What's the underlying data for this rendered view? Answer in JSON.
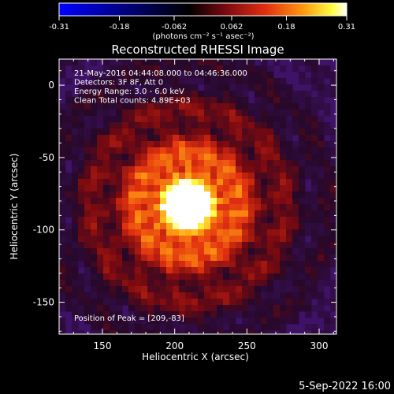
{
  "chart_data": {
    "type": "heatmap",
    "title": "Reconstructed RHESSI Image",
    "xlabel": "Heliocentric X (arcsec)",
    "ylabel": "Heliocentric Y (arcsec)",
    "xlim": [
      120,
      312
    ],
    "ylim": [
      -172,
      18
    ],
    "x_ticks": [
      150,
      200,
      250,
      300
    ],
    "y_ticks": [
      0,
      -50,
      -100,
      -150
    ],
    "colorbar": {
      "range": [
        -0.31,
        0.31
      ],
      "tick_values": [
        -0.31,
        -0.18,
        -0.062,
        0.062,
        0.18,
        0.31
      ],
      "tick_labels": [
        "-0.31",
        "-0.18",
        "-0.062",
        "0.062",
        "0.18",
        "0.31"
      ],
      "units": "(photons cm⁻² s⁻¹ asec⁻²)",
      "colors": [
        "#0000ff",
        "#000000",
        "#7a0a10",
        "#e23010",
        "#ff9a10",
        "#ffff40",
        "#ffffff"
      ]
    },
    "annotations": [
      "21-May-2016 04:44:08.000 to 04:46:36.000",
      "Detectors: 3F 8F, Att 0",
      "Energy Range: 3.0 - 6.0 keV",
      "Clean     Total counts: 4.89E+03"
    ],
    "peak_label": "Position of Peak = [209,-83]",
    "peak": {
      "x": 209,
      "y": -83
    },
    "background_color": "#3e1266"
  },
  "footer": {
    "date": "5-Sep-2022 16:00"
  }
}
